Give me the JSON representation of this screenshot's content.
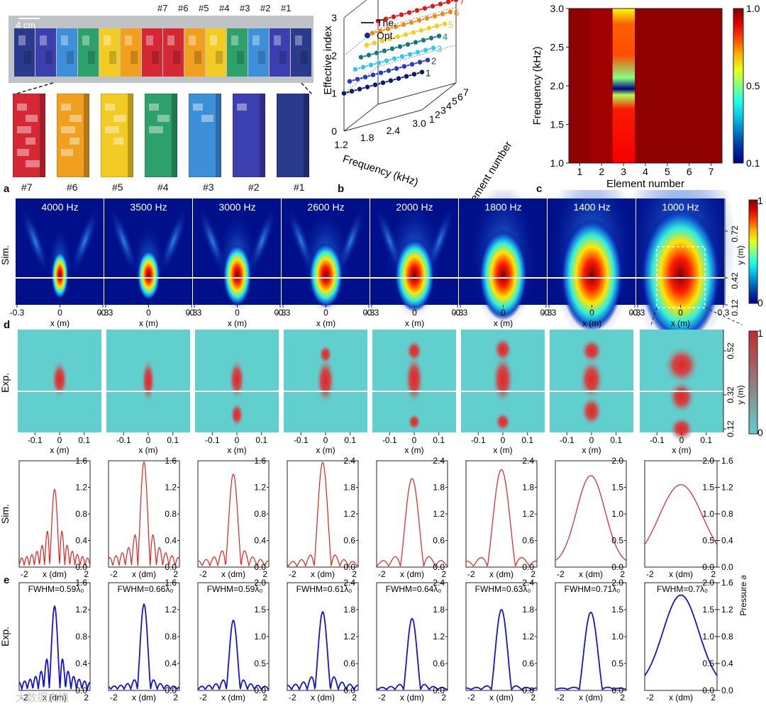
{
  "top": {
    "scale_bar": "4 cm",
    "elements_top": [
      "#7",
      "#6",
      "#5",
      "#4",
      "#3",
      "#2",
      "#1"
    ],
    "elements_bottom": [
      "#7",
      "#6",
      "#5",
      "#4",
      "#3",
      "#2",
      "#1"
    ],
    "element_colors": [
      "#d42834",
      "#f0a01e",
      "#f2cc24",
      "#2da06b",
      "#3c8fd8",
      "#3b3fb0",
      "#2a3a8c"
    ]
  },
  "panel_letters": {
    "a": "a",
    "b": "b",
    "c": "c",
    "d": "d",
    "e": "e"
  },
  "watermark": "大数据文摘",
  "chart_data": [
    {
      "id": "b",
      "type": "line",
      "title": "",
      "xlabel": "Frequency (kHz)",
      "ylabel": "Effective index",
      "zlabel": "Element number",
      "x_ticks": [
        "1.2",
        "1.8",
        "2.4",
        "3.0"
      ],
      "y_ticks": [
        "0",
        "1",
        "2",
        "3"
      ],
      "z_ticks": [
        "1",
        "2",
        "3",
        "4",
        "5",
        "6",
        "7"
      ],
      "legend": [
        "The.",
        "Opt."
      ],
      "series_labels": [
        "1",
        "2",
        "3",
        "4",
        "5",
        "6",
        "7"
      ],
      "series_colors": [
        "#0c1a6b",
        "#2838c8",
        "#33c8f0",
        "#127a7a",
        "#f2d020",
        "#f08a10",
        "#e01818"
      ],
      "effective_index": [
        1.0,
        1.2,
        1.4,
        1.6,
        1.8,
        2.0,
        2.2
      ]
    },
    {
      "id": "c",
      "type": "heatmap",
      "xlabel": "Element number",
      "ylabel": "Frequency (kHz)",
      "x_ticks": [
        "1",
        "2",
        "3",
        "4",
        "5",
        "6",
        "7"
      ],
      "y_ticks": [
        "1.0",
        "1.5",
        "2.0",
        "2.5",
        "3.0"
      ],
      "colorbar_ticks": [
        "1.0",
        "0.5",
        "0.1"
      ],
      "transmission_per_element": [
        0.97,
        0.93,
        0.8,
        0.97,
        0.97,
        0.97,
        0.97
      ]
    },
    {
      "id": "a-sim",
      "type": "heatmap",
      "row_label": "Sim.",
      "frequencies": [
        "4000 Hz",
        "3500 Hz",
        "3000 Hz",
        "2600 Hz",
        "2000 Hz",
        "1800 Hz",
        "1400 Hz",
        "1000 Hz"
      ],
      "x_ticks": [
        "-0.3",
        "0",
        "0.3"
      ],
      "xlabel": "x (m)",
      "ylabel": "y (m)",
      "y_ticks": [
        "0.72",
        "0.42",
        "0.12"
      ],
      "colorbar_ticks": [
        "1",
        "0"
      ]
    },
    {
      "id": "d-exp",
      "type": "heatmap",
      "row_label": "Exp.",
      "x_ticks": [
        "-0.1",
        "0",
        "0.1"
      ],
      "xlabel": "x (m)",
      "ylabel": "y (m)",
      "y_ticks": [
        "0.52",
        "0.32",
        "0.12"
      ],
      "colorbar_ticks": [
        "1",
        "0"
      ]
    },
    {
      "id": "sim-profiles",
      "type": "line",
      "row_label": "Sim.",
      "color": "#e02020",
      "xlabel": "x (dm)",
      "x_range": [
        -2,
        2
      ],
      "x_ticks": [
        "-2",
        "2"
      ],
      "ylim": [
        [
          0,
          1.6
        ],
        [
          0,
          1.6
        ],
        [
          0,
          1.6
        ],
        [
          0,
          2.4
        ],
        [
          0,
          2.4
        ],
        [
          0,
          2.4
        ],
        [
          0,
          2.0
        ],
        [
          0,
          2.0
        ]
      ],
      "y_ticks": [
        [
          "0.0",
          "0.4",
          "0.8",
          "1.2",
          "1.6"
        ],
        [
          "0.0",
          "0.4",
          "0.8",
          "1.2",
          "1.6"
        ],
        [
          "0.0",
          "0.4",
          "0.8",
          "1.2",
          "1.6"
        ],
        [
          "0.0",
          "0.6",
          "1.2",
          "1.8",
          "2.4"
        ],
        [
          "0.0",
          "0.6",
          "1.2",
          "1.8",
          "2.4"
        ],
        [
          "0.0",
          "0.6",
          "1.2",
          "1.8",
          "2.4"
        ],
        [
          "0.0",
          "0.5",
          "1.0",
          "1.5",
          "2.0"
        ],
        [
          "0.0",
          "0.5",
          "1.0",
          "1.5",
          "2.0"
        ]
      ],
      "right_axis": {
        "label": "Pressure amplitude (Pa)",
        "ticks": [
          "0.0",
          "0.4",
          "0.8",
          "1.2",
          "1.6"
        ]
      },
      "peaks": [
        1.17,
        1.58,
        1.4,
        2.36,
        2.0,
        2.2,
        1.67,
        1.5
      ],
      "widths": [
        0.13,
        0.16,
        0.2,
        0.22,
        0.3,
        0.36,
        0.5,
        0.75
      ],
      "sidelobes": [
        0.5,
        0.33,
        0.18,
        0.12,
        0.12,
        0.1,
        0.0,
        0.0
      ]
    },
    {
      "id": "e-exp-profiles",
      "type": "line",
      "row_label": "Exp.",
      "color": "#1414d0",
      "xlabel": "x (dm)",
      "x_range": [
        -2,
        2
      ],
      "x_ticks": [
        "-2",
        "2"
      ],
      "fwhm_labels": [
        "FWHM=0.59λ₀",
        "FWHM=0.66λ₀",
        "FWHM=0.59λ₀",
        "FWHM=0.61λ₀",
        "FWHM=0.64λ₀",
        "FWHM=0.63λ₀",
        "FWHM=0.71λ₀",
        "FWHM=0.7λ₀"
      ],
      "ylim": [
        [
          0,
          1.6
        ],
        [
          0,
          1.6
        ],
        [
          0,
          2.0
        ],
        [
          0,
          2.4
        ],
        [
          0,
          2.4
        ],
        [
          0,
          2.4
        ],
        [
          0,
          2.0
        ],
        [
          0,
          2.0
        ]
      ],
      "y_ticks": [
        [
          "0.0",
          "0.4",
          "0.8",
          "1.2",
          "1.6"
        ],
        [
          "0.0",
          "0.4",
          "0.8",
          "1.2",
          "1.6"
        ],
        [
          "0.0",
          "0.5",
          "1.0",
          "1.5",
          "2.0"
        ],
        [
          "0.0",
          "0.6",
          "1.2",
          "1.8",
          "2.4"
        ],
        [
          "0.0",
          "0.6",
          "1.2",
          "1.8",
          "2.4"
        ],
        [
          "0.0",
          "0.6",
          "1.2",
          "1.8",
          "2.4"
        ],
        [
          "0.0",
          "0.5",
          "1.0",
          "1.5",
          "2.0"
        ],
        [
          "0.0",
          "0.5",
          "1.0",
          "1.5",
          "2.0"
        ]
      ],
      "right_axis": {
        "label": "Pressure amplitude (Pa)",
        "ticks": [
          "0.0",
          "0.4",
          "0.8",
          "1.2",
          "1.6"
        ]
      },
      "peaks": [
        1.25,
        1.28,
        1.3,
        1.75,
        1.6,
        1.8,
        1.45,
        1.72
      ],
      "widths": [
        0.14,
        0.17,
        0.18,
        0.2,
        0.22,
        0.26,
        0.3,
        0.62
      ],
      "sidelobes": [
        0.4,
        0.12,
        0.15,
        0.18,
        0.08,
        0.05,
        0.03,
        0.0
      ]
    }
  ]
}
